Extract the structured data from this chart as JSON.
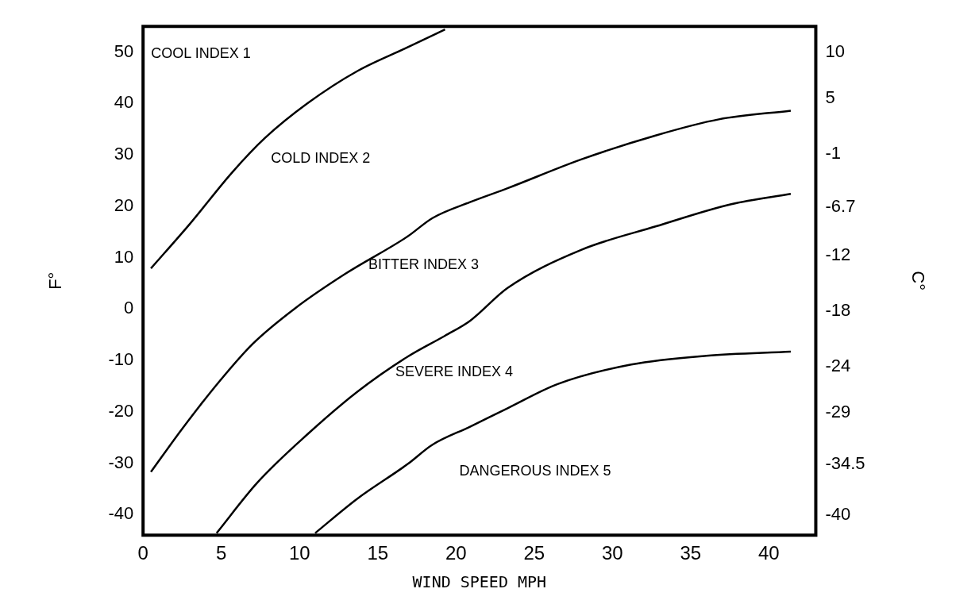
{
  "chart_data": {
    "type": "line",
    "xlabel": "WIND SPEED MPH",
    "ylabel": "F°",
    "y2label": "C°",
    "xlim": [
      0,
      43
    ],
    "xticks": [
      0,
      5,
      10,
      15,
      20,
      25,
      30,
      35,
      40
    ],
    "ylim": [
      -44,
      55
    ],
    "yticks": [
      50,
      40,
      30,
      20,
      10,
      0,
      -10,
      -20,
      -30,
      -40
    ],
    "y2lim": [
      -42.2,
      12.8
    ],
    "y2ticks": [
      10,
      5,
      -1,
      -6.7,
      -12,
      -18,
      -24,
      -29,
      -34.5,
      -40
    ],
    "grid": false,
    "legend": false,
    "marker": "none",
    "line_style": "solid",
    "series": [
      {
        "color": "#000000",
        "x": [
          0.5,
          3,
          5.7,
          7.8,
          10.5,
          13.7,
          16.9,
          19.3
        ],
        "values": [
          7.9,
          16.6,
          26.6,
          33.3,
          40,
          46.3,
          50.9,
          54.4
        ]
      },
      {
        "color": "#000000",
        "x": [
          0.5,
          2.5,
          4.9,
          7,
          9.7,
          12.9,
          16.9,
          18.5,
          20.9,
          23.3,
          28,
          32.8,
          36.8,
          41.4
        ],
        "values": [
          -31.7,
          -23.3,
          -14,
          -6.8,
          0.1,
          6.8,
          14.1,
          17.7,
          20.8,
          23.5,
          29.1,
          33.8,
          36.9,
          38.6
        ]
      },
      {
        "color": "#000000",
        "x": [
          4.7,
          7.3,
          10.5,
          13.7,
          16.9,
          19.3,
          20.9,
          23.3,
          28,
          32.8,
          37.6,
          41.4
        ],
        "values": [
          -43.6,
          -33.8,
          -24.4,
          -16.1,
          -9.3,
          -5.2,
          -2.3,
          4.1,
          11.5,
          16.1,
          20.4,
          22.4
        ]
      },
      {
        "color": "#000000",
        "x": [
          11,
          13.7,
          16.9,
          18.5,
          20.9,
          23.3,
          26.5,
          31.2,
          36,
          41.4
        ],
        "values": [
          -43.6,
          -36.9,
          -30.2,
          -26.4,
          -22.9,
          -19.3,
          -14.6,
          -10.8,
          -9.1,
          -8.3
        ]
      }
    ],
    "annotations": [
      "COOL INDEX 1",
      "COLD INDEX 2",
      "BITTER INDEX 3",
      "SEVERE INDEX 4",
      "DANGEROUS INDEX 5"
    ]
  }
}
